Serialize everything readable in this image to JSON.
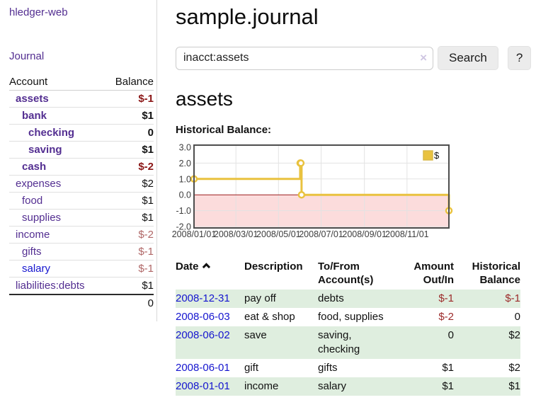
{
  "app": {
    "title": "hledger-web"
  },
  "colors": {
    "accent_purple": "#532e91",
    "link_blue": "#1515cf",
    "negative_bold": "#8b1616",
    "negative_muted": "#b06767",
    "negative_table": "#9c2a2a",
    "row_green": "#dfeedf",
    "chart_line": "#e9c23f",
    "negative_zone_pink": "#fcdcdc",
    "zero_line_red": "#9c1c1c"
  },
  "sidebar": {
    "journal_link": "Journal",
    "accounts_table": {
      "headers": [
        "Account",
        "Balance"
      ],
      "rows": [
        {
          "name": "assets",
          "depth": 1,
          "bold": true,
          "link_tone": "visited",
          "balance": "$-1",
          "negative": true
        },
        {
          "name": "bank",
          "depth": 2,
          "bold": true,
          "link_tone": "visited",
          "balance": "$1",
          "negative": false
        },
        {
          "name": "checking",
          "depth": 3,
          "bold": true,
          "link_tone": "visited",
          "balance": "0",
          "negative": false
        },
        {
          "name": "saving",
          "depth": 3,
          "bold": true,
          "link_tone": "visited",
          "balance": "$1",
          "negative": false
        },
        {
          "name": "cash",
          "depth": 2,
          "bold": true,
          "link_tone": "visited",
          "balance": "$-2",
          "negative": true
        },
        {
          "name": "expenses",
          "depth": 1,
          "bold": false,
          "link_tone": "visited",
          "balance": "$2",
          "negative": false
        },
        {
          "name": "food",
          "depth": 2,
          "bold": false,
          "link_tone": "visited",
          "balance": "$1",
          "negative": false
        },
        {
          "name": "supplies",
          "depth": 2,
          "bold": false,
          "link_tone": "visited",
          "balance": "$1",
          "negative": false
        },
        {
          "name": "income",
          "depth": 1,
          "bold": false,
          "link_tone": "visited",
          "balance": "$-2",
          "negative": true
        },
        {
          "name": "gifts",
          "depth": 2,
          "bold": false,
          "link_tone": "visited",
          "balance": "$-1",
          "negative": true
        },
        {
          "name": "salary",
          "depth": 2,
          "bold": false,
          "link_tone": "unvisited",
          "balance": "$-1",
          "negative": true
        },
        {
          "name": "liabilities:debts",
          "depth": 1,
          "bold": false,
          "link_tone": "visited",
          "balance": "$1",
          "negative": false
        }
      ],
      "total": "0"
    }
  },
  "header": {
    "title": "sample.journal"
  },
  "search": {
    "value": "inacct:assets",
    "clear_glyph": "×",
    "button_label": "Search",
    "help_label": "?"
  },
  "account_page": {
    "title": "assets",
    "chart_label": "Historical Balance:"
  },
  "chart_data": {
    "type": "line",
    "title": "Historical Balance:",
    "steps": true,
    "x_range": [
      "2008-01-01",
      "2008-12-31"
    ],
    "ylim": [
      -2,
      3
    ],
    "y_ticks": [
      "3.0",
      "2.0",
      "1.0",
      "0.0",
      "-1.0",
      "-2.0"
    ],
    "x_ticks": [
      "2008/01/01",
      "2008/03/01",
      "2008/05/01",
      "2008/07/01",
      "2008/09/01",
      "2008/11/01"
    ],
    "grid": true,
    "legend": {
      "label": "$",
      "position": "top-right"
    },
    "series": [
      {
        "name": "$",
        "color": "#e9c23f",
        "points": [
          {
            "date": "2008-01-01",
            "value": 1
          },
          {
            "date": "2008-06-01",
            "value": 2
          },
          {
            "date": "2008-06-02",
            "value": 2
          },
          {
            "date": "2008-06-03",
            "value": 0
          },
          {
            "date": "2008-12-31",
            "value": -1
          }
        ]
      }
    ]
  },
  "register": {
    "headers": {
      "date": "Date",
      "description": "Description",
      "accounts": "To/From Account(s)",
      "amount": "Amount Out/In",
      "balance": "Historical Balance"
    },
    "sort": "date-ascending",
    "rows": [
      {
        "date": "2008-12-31",
        "description": "pay off",
        "accounts": "debts",
        "amount": "$-1",
        "amount_negative": true,
        "balance": "$-1",
        "balance_negative": true
      },
      {
        "date": "2008-06-03",
        "description": "eat & shop",
        "accounts": "food, supplies",
        "amount": "$-2",
        "amount_negative": true,
        "balance": "0",
        "balance_negative": false
      },
      {
        "date": "2008-06-02",
        "description": "save",
        "accounts": "saving, checking",
        "amount": "0",
        "amount_negative": false,
        "balance": "$2",
        "balance_negative": false
      },
      {
        "date": "2008-06-01",
        "description": "gift",
        "accounts": "gifts",
        "amount": "$1",
        "amount_negative": false,
        "balance": "$2",
        "balance_negative": false
      },
      {
        "date": "2008-01-01",
        "description": "income",
        "accounts": "salary",
        "amount": "$1",
        "amount_negative": false,
        "balance": "$1",
        "balance_negative": false
      }
    ]
  }
}
